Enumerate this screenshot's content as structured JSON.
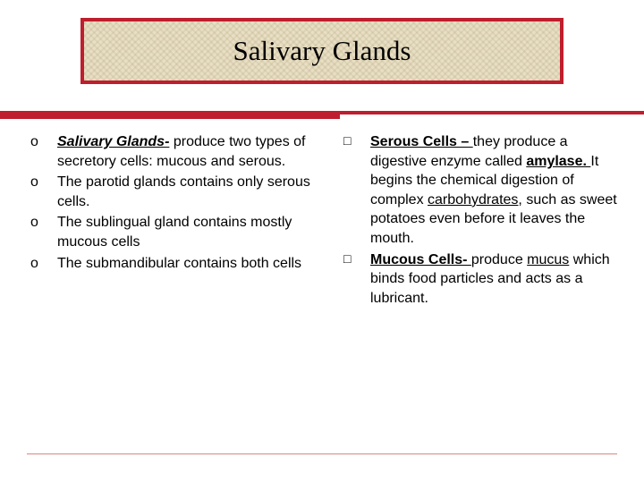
{
  "title": "Salivary Glands",
  "colors": {
    "accent": "#be1e2d",
    "title_bg": "#e8dfc4",
    "text": "#000000",
    "page_bg": "#ffffff"
  },
  "left": {
    "items": [
      {
        "lead": "Salivary Glands-",
        "lead_style": "bi-u",
        "rest": " produce two types of secretory cells:  mucous and serous."
      },
      {
        "rest": "The parotid glands contains only serous cells."
      },
      {
        "rest": "The sublingual gland contains mostly mucous cells"
      },
      {
        "rest": "The submandibular contains both cells"
      }
    ]
  },
  "right": {
    "items": [
      {
        "parts": [
          {
            "t": "Serous Cells – ",
            "cls": "b-u"
          },
          {
            "t": "they produce a digestive enzyme called ",
            "cls": ""
          },
          {
            "t": "amylase.  ",
            "cls": "b-u"
          },
          {
            "t": "It begins the chemical digestion of complex ",
            "cls": ""
          },
          {
            "t": "carbohydrates,",
            "cls": "u"
          },
          {
            "t": " such as sweet potatoes even before it leaves the mouth.",
            "cls": ""
          }
        ]
      },
      {
        "parts": [
          {
            "t": "Mucous Cells- ",
            "cls": "b-u"
          },
          {
            "t": "produce ",
            "cls": ""
          },
          {
            "t": "mucus",
            "cls": "u"
          },
          {
            "t": " which binds food particles and acts as a lubricant.",
            "cls": ""
          }
        ]
      }
    ]
  }
}
